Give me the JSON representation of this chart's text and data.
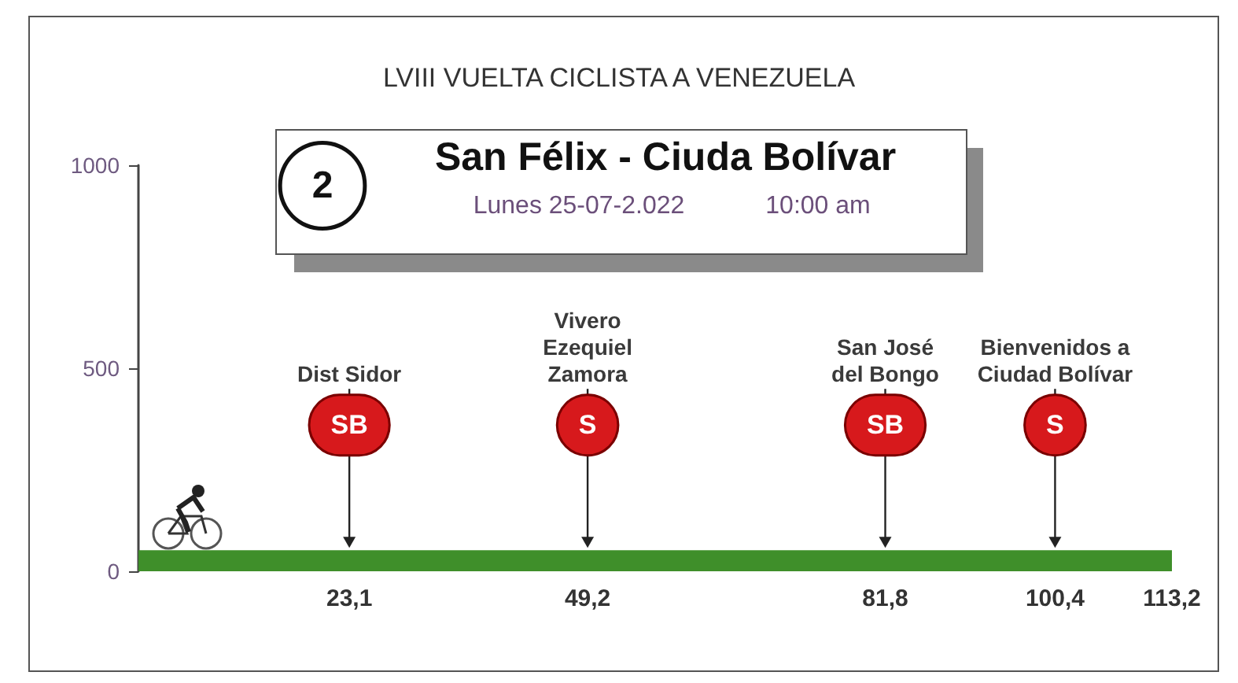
{
  "chart_data": {
    "type": "area",
    "title": "LVIII VUELTA CICLISTA A VENEZUELA",
    "subtitle": "San Félix - Ciuda Bolívar",
    "x": [
      0,
      113.2
    ],
    "values": [
      50,
      50
    ],
    "color": "#3f8f2a",
    "xlim": [
      0,
      113.2
    ],
    "xticks": [
      {
        "value": 23.1,
        "label": "23,1"
      },
      {
        "value": 49.2,
        "label": "49,2"
      },
      {
        "value": 81.8,
        "label": "81,8"
      },
      {
        "value": 100.4,
        "label": "100,4"
      },
      {
        "value": 113.2,
        "label": "113,2"
      }
    ],
    "ylim": [
      0,
      1000
    ],
    "yticks": [
      0,
      500,
      1000
    ],
    "annotations": [
      "2",
      "Lunes 25-07-2.022",
      "10:00 am",
      {
        "text": "Dist Sidor",
        "x": 23.1,
        "y": 50
      },
      "SB",
      {
        "text": "Vivero\nEzequiel\nZamora",
        "x": 49.2,
        "y": 50
      },
      "S",
      {
        "text": "San José\ndel Bongo",
        "x": 81.8,
        "y": 50
      },
      "SB",
      {
        "text": "Bienvenidos a\nCiudad Bolívar",
        "x": 100.4,
        "y": 50
      },
      "S"
    ]
  }
}
